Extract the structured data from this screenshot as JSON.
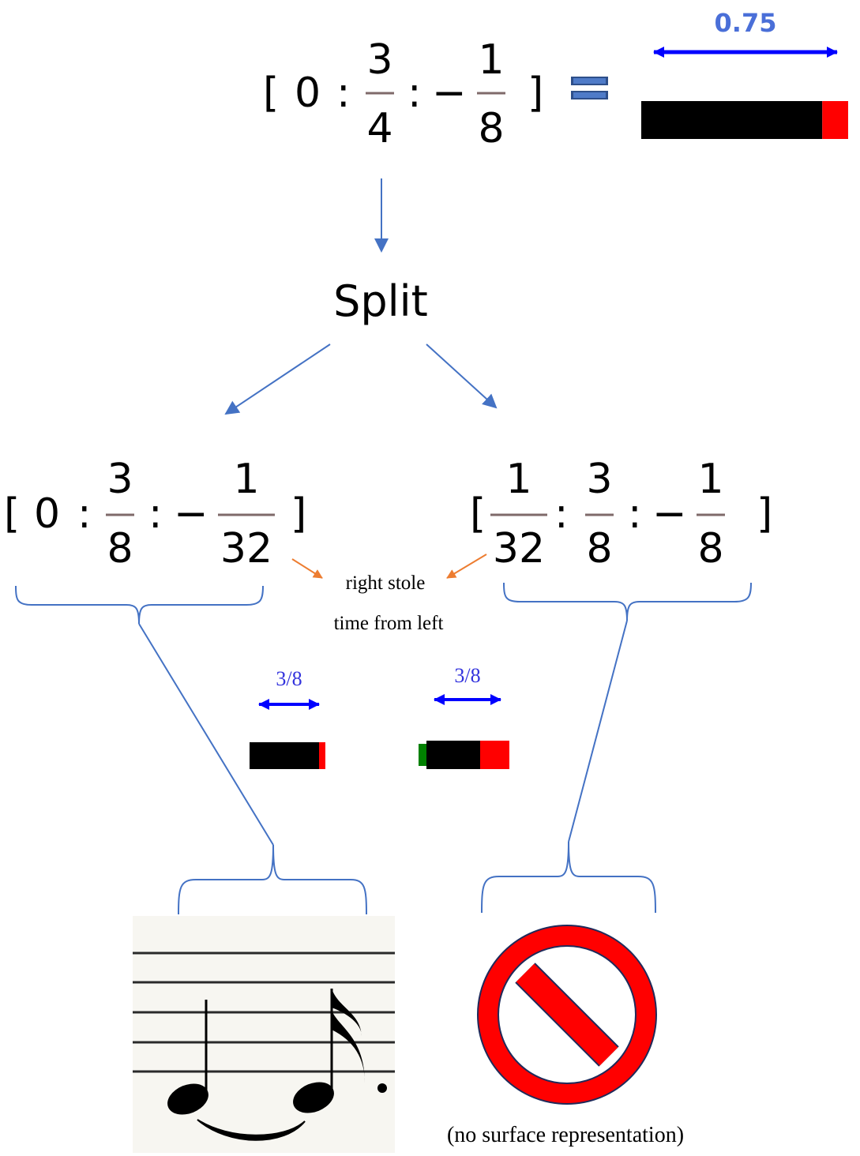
{
  "top_expr": {
    "open": "[",
    "zero": "0",
    "sep1": ":",
    "frac1": {
      "num": "3",
      "den": "4"
    },
    "sep2": ":",
    "minus": "−",
    "frac2": {
      "num": "1",
      "den": "8"
    },
    "close": "]"
  },
  "top_bar": {
    "label": "0.75",
    "body_fraction": 0.875,
    "tail_fraction": 0.125
  },
  "split_label": "Split",
  "left_expr": {
    "open": "[",
    "zero": "0",
    "sep1": ":",
    "frac1": {
      "num": "3",
      "den": "8"
    },
    "sep2": ":",
    "minus": "−",
    "frac2": {
      "num": "1",
      "den": "32"
    },
    "close": "]"
  },
  "right_expr": {
    "open": "[",
    "frac0": {
      "num": "1",
      "den": "32"
    },
    "sep1": ":",
    "frac1": {
      "num": "3",
      "den": "8"
    },
    "sep2": ":",
    "minus": "−",
    "frac2": {
      "num": "1",
      "den": "8"
    },
    "close": "]"
  },
  "annotation": {
    "line1": "right stole",
    "line2": "time from left"
  },
  "left_bar": {
    "label": "3/8"
  },
  "right_bar": {
    "label": "3/8"
  },
  "no_surface_caption": "(no surface representation)",
  "colors": {
    "arrow_blue": "#4472c4",
    "dim_blue": "#0000ff",
    "label_blue": "#4a6fd8",
    "orange": "#ed7d31",
    "bar_black": "#000000",
    "bar_red": "#ff0000",
    "bar_green": "#008000",
    "fraction_line": "#7f6a6a",
    "no_sign_red": "#ff0000",
    "no_sign_outline": "#1f2a5a"
  }
}
